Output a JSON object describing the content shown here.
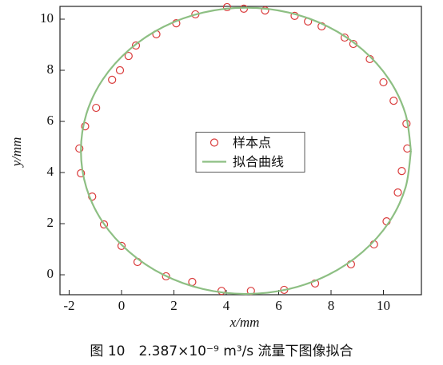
{
  "chart_data": {
    "type": "scatter",
    "caption": "图 10　2.387×10⁻⁹ m³/s 流量下图像拟合",
    "xlabel": "x/mm",
    "ylabel": "y/mm",
    "xlim": [
      -2.35,
      11.45
    ],
    "ylim": [
      -0.78,
      10.5
    ],
    "xticks": [
      -2,
      0,
      2,
      4,
      6,
      8,
      10
    ],
    "yticks": [
      0,
      2,
      4,
      6,
      8,
      10
    ],
    "legend": "center",
    "series": [
      {
        "name": "样本点",
        "color": "#d93a3a",
        "style": "open-circle",
        "x": [
          4.03,
          4.67,
          5.48,
          6.61,
          7.12,
          7.64,
          8.52,
          8.85,
          9.48,
          10.0,
          10.39,
          10.88,
          10.91,
          10.7,
          10.55,
          10.12,
          9.64,
          8.76,
          7.39,
          6.21,
          4.94,
          3.82,
          2.7,
          1.7,
          0.61,
          0.0,
          -0.67,
          -1.12,
          -1.55,
          -1.61,
          -1.39,
          -0.97,
          -0.36,
          -0.06,
          0.27,
          0.55,
          1.33,
          2.09,
          2.82
        ],
        "values": [
          10.47,
          10.41,
          10.34,
          10.13,
          9.91,
          9.72,
          9.28,
          9.03,
          8.44,
          7.53,
          6.81,
          5.91,
          4.94,
          4.06,
          3.22,
          2.09,
          1.19,
          0.41,
          -0.34,
          -0.59,
          -0.63,
          -0.63,
          -0.28,
          -0.06,
          0.5,
          1.13,
          1.97,
          3.06,
          3.97,
          4.94,
          5.81,
          6.53,
          7.63,
          8.0,
          8.56,
          8.97,
          9.41,
          9.84,
          10.19
        ]
      },
      {
        "name": "拟合曲线",
        "color": "#8dbf83",
        "style": "line",
        "x": [
          11.05,
          10.84,
          10.21,
          9.2,
          7.9,
          6.38,
          4.75,
          3.12,
          1.6,
          0.3,
          -0.71,
          -1.34,
          -1.55,
          -1.34,
          -0.71,
          0.3,
          1.6,
          3.12,
          4.75,
          6.38,
          7.9,
          9.2,
          10.21,
          10.84,
          11.05
        ],
        "values": [
          4.85,
          6.3,
          7.65,
          8.81,
          9.7,
          10.26,
          10.45,
          10.26,
          9.7,
          8.81,
          7.65,
          6.3,
          4.85,
          3.4,
          2.05,
          0.89,
          0.0,
          -0.56,
          -0.75,
          -0.56,
          0.0,
          0.89,
          2.05,
          3.4,
          4.85
        ]
      }
    ]
  }
}
